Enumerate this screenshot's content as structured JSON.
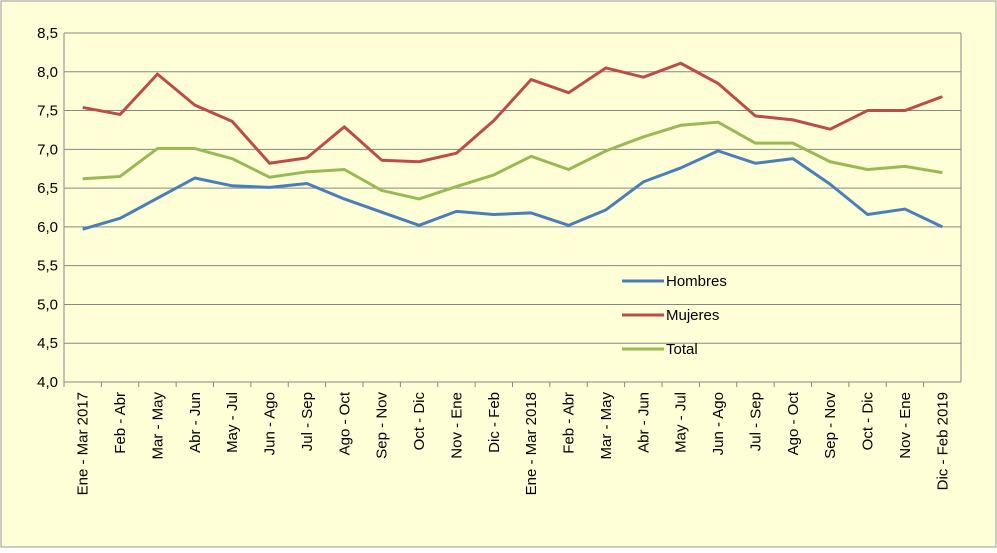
{
  "chart_data": {
    "type": "line",
    "categories": [
      "Ene - Mar 2017",
      "Feb - Abr",
      "Mar - May",
      "Abr - Jun",
      "May - Jul",
      "Jun - Ago",
      "Jul - Sep",
      "Ago - Oct",
      "Sep - Nov",
      "Oct - Dic",
      "Nov - Ene",
      "Dic - Feb",
      "Ene - Mar 2018",
      "Feb - Abr",
      "Mar - May",
      "Abr - Jun",
      "May - Jul",
      "Jun - Ago",
      "Jul - Sep",
      "Ago - Oct",
      "Sep - Nov",
      "Oct - Dic",
      "Nov - Ene",
      "Dic - Feb 2019"
    ],
    "series": [
      {
        "name": "Hombres",
        "color": "#4a7ebb",
        "values": [
          5.97,
          6.11,
          6.37,
          6.63,
          6.53,
          6.51,
          6.56,
          6.36,
          6.19,
          6.02,
          6.2,
          6.16,
          6.18,
          6.02,
          6.22,
          6.58,
          6.76,
          6.98,
          6.82,
          6.88,
          6.55,
          6.16,
          6.23,
          6.0
        ]
      },
      {
        "name": "Mujeres",
        "color": "#be4b48",
        "values": [
          7.54,
          7.45,
          7.97,
          7.57,
          7.36,
          6.82,
          6.89,
          7.29,
          6.86,
          6.84,
          6.95,
          7.37,
          7.9,
          7.73,
          8.05,
          7.93,
          8.11,
          7.85,
          7.43,
          7.38,
          7.26,
          7.5,
          7.5,
          7.68
        ]
      },
      {
        "name": "Total",
        "color": "#98b954",
        "values": [
          6.62,
          6.65,
          7.01,
          7.01,
          6.88,
          6.64,
          6.71,
          6.74,
          6.47,
          6.36,
          6.52,
          6.67,
          6.91,
          6.74,
          6.98,
          7.16,
          7.31,
          7.35,
          7.08,
          7.08,
          6.84,
          6.74,
          6.78,
          6.7
        ]
      }
    ],
    "ylim": [
      4.0,
      8.5
    ],
    "yticks": [
      {
        "value": 4.0,
        "label": "4,0"
      },
      {
        "value": 4.5,
        "label": "4,5"
      },
      {
        "value": 5.0,
        "label": "5,0"
      },
      {
        "value": 5.5,
        "label": "5,5"
      },
      {
        "value": 6.0,
        "label": "6,0"
      },
      {
        "value": 6.5,
        "label": "6,5"
      },
      {
        "value": 7.0,
        "label": "7,0"
      },
      {
        "value": 7.5,
        "label": "7,5"
      },
      {
        "value": 8.0,
        "label": "8,0"
      },
      {
        "value": 8.5,
        "label": "8,5"
      }
    ],
    "grid": true
  }
}
